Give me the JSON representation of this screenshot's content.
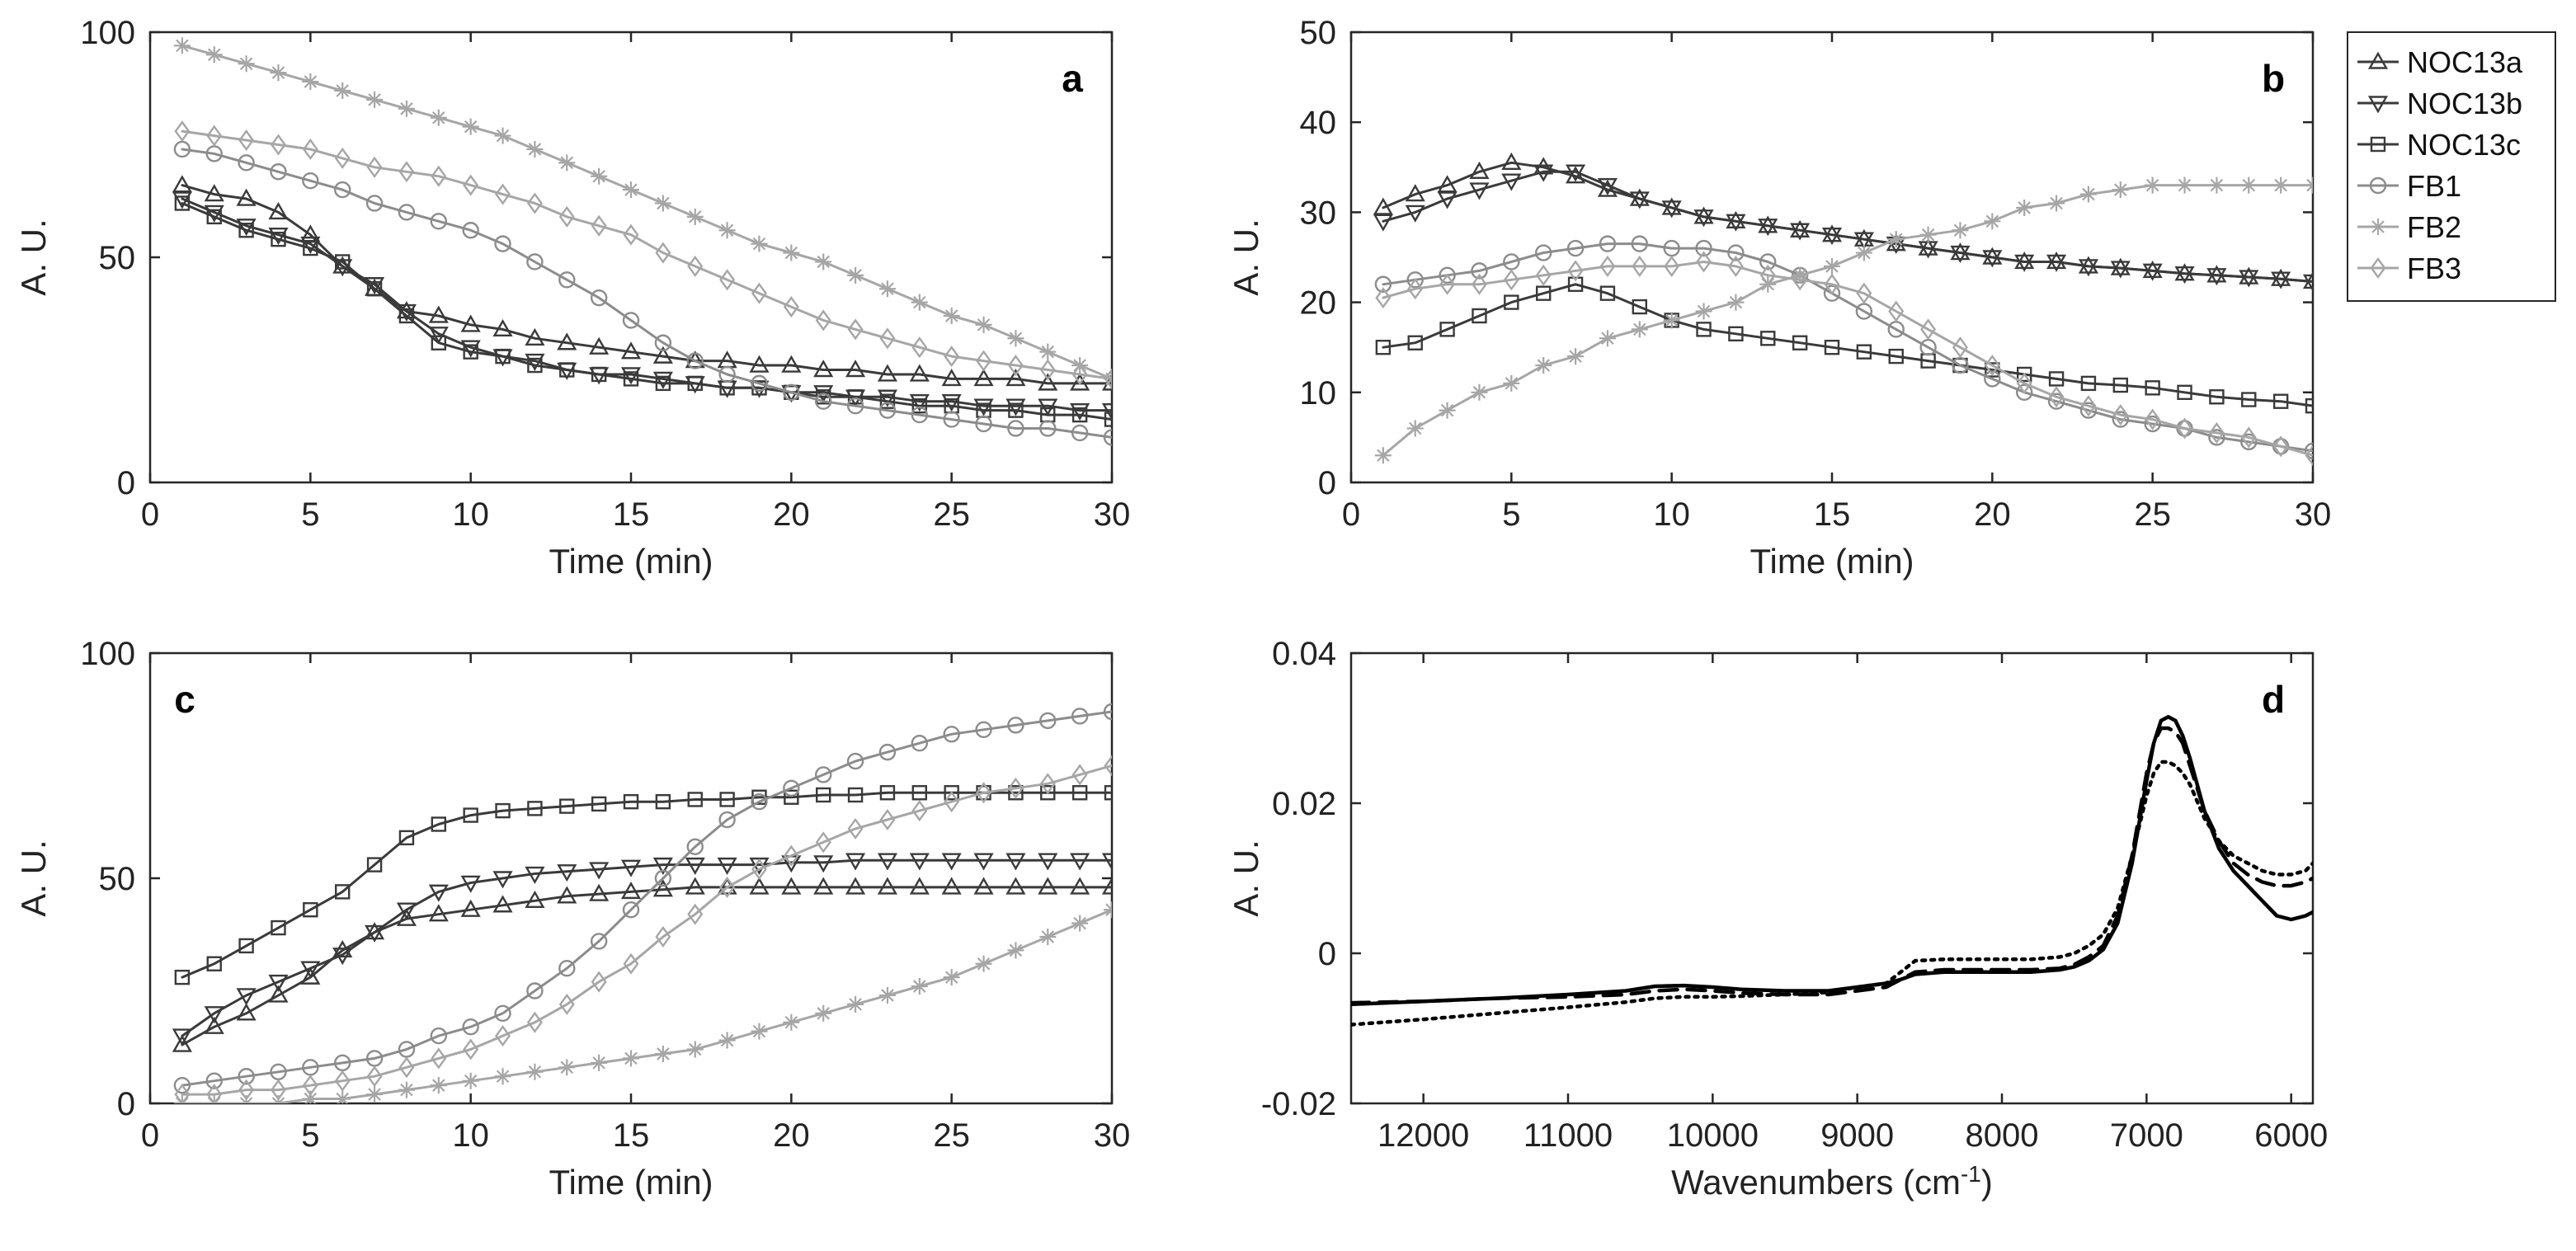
{
  "legend": {
    "entries": [
      {
        "label": "NOC13a",
        "color": "#3a3a3a",
        "marker": "triangle-up-icon"
      },
      {
        "label": "NOC13b",
        "color": "#3a3a3a",
        "marker": "triangle-down-icon"
      },
      {
        "label": "NOC13c",
        "color": "#3a3a3a",
        "marker": "square-icon"
      },
      {
        "label": "FB1",
        "color": "#8c8c8c",
        "marker": "circle-icon"
      },
      {
        "label": "FB2",
        "color": "#a6a6a6",
        "marker": "asterisk-icon"
      },
      {
        "label": "FB3",
        "color": "#a6a6a6",
        "marker": "diamond-icon"
      }
    ]
  },
  "chart_data": [
    {
      "type": "line",
      "panel": "a",
      "xlabel": "Time (min)",
      "ylabel": "A. U.",
      "xlim": [
        0,
        30
      ],
      "ylim": [
        0,
        100
      ],
      "xticks": [
        "0",
        "5",
        "10",
        "15",
        "20",
        "25",
        "30"
      ],
      "yticks": [
        "0",
        "50",
        "100"
      ],
      "x": [
        1,
        2,
        3,
        4,
        5,
        6,
        7,
        8,
        9,
        10,
        11,
        12,
        13,
        14,
        15,
        16,
        17,
        18,
        19,
        20,
        21,
        22,
        23,
        24,
        25,
        26,
        27,
        28,
        29,
        30
      ],
      "series": [
        {
          "name": "NOC13a",
          "values": [
            66,
            64,
            63,
            60,
            55,
            48,
            43,
            38,
            37,
            35,
            34,
            32,
            31,
            30,
            29,
            28,
            27,
            27,
            26,
            26,
            25,
            25,
            24,
            24,
            23,
            23,
            23,
            22,
            22,
            22
          ]
        },
        {
          "name": "NOC13b",
          "values": [
            63,
            60,
            57,
            55,
            53,
            48,
            44,
            38,
            33,
            30,
            28,
            27,
            25,
            24,
            24,
            23,
            22,
            21,
            21,
            20,
            20,
            19,
            19,
            18,
            18,
            17,
            17,
            17,
            16,
            16
          ]
        },
        {
          "name": "NOC13c",
          "values": [
            62,
            59,
            56,
            54,
            52,
            49,
            43,
            37,
            31,
            29,
            28,
            26,
            25,
            24,
            23,
            22,
            22,
            21,
            21,
            20,
            19,
            19,
            18,
            17,
            17,
            16,
            16,
            15,
            15,
            14
          ]
        },
        {
          "name": "FB1",
          "values": [
            74,
            73,
            71,
            69,
            67,
            65,
            62,
            60,
            58,
            56,
            53,
            49,
            45,
            41,
            36,
            31,
            27,
            24,
            22,
            20,
            18,
            17,
            16,
            15,
            14,
            13,
            12,
            12,
            11,
            10
          ]
        },
        {
          "name": "FB2",
          "values": [
            97,
            95,
            93,
            91,
            89,
            87,
            85,
            83,
            81,
            79,
            77,
            74,
            71,
            68,
            65,
            62,
            59,
            56,
            53,
            51,
            49,
            46,
            43,
            40,
            37,
            35,
            32,
            29,
            26,
            23
          ]
        },
        {
          "name": "FB3",
          "values": [
            78,
            77,
            76,
            75,
            74,
            72,
            70,
            69,
            68,
            66,
            64,
            62,
            59,
            57,
            55,
            51,
            48,
            45,
            42,
            39,
            36,
            34,
            32,
            30,
            28,
            27,
            26,
            25,
            24,
            23
          ]
        }
      ]
    },
    {
      "type": "line",
      "panel": "b",
      "xlabel": "Time (min)",
      "ylabel": "A. U.",
      "xlim": [
        0,
        30
      ],
      "ylim": [
        0,
        50
      ],
      "xticks": [
        "0",
        "5",
        "10",
        "15",
        "20",
        "25",
        "30"
      ],
      "yticks": [
        "0",
        "10",
        "20",
        "30",
        "40",
        "50"
      ],
      "x": [
        1,
        2,
        3,
        4,
        5,
        6,
        7,
        8,
        9,
        10,
        11,
        12,
        13,
        14,
        15,
        16,
        17,
        18,
        19,
        20,
        21,
        22,
        23,
        24,
        25,
        26,
        27,
        28,
        29,
        30
      ],
      "series": [
        {
          "name": "NOC13a",
          "values": [
            30.5,
            32,
            33,
            34.5,
            35.5,
            35,
            34,
            32.5,
            31.5,
            30.5,
            29.5,
            29,
            28.5,
            28,
            27.5,
            27,
            26.5,
            26,
            25.5,
            25,
            24.5,
            24.5,
            24,
            23.8,
            23.5,
            23.2,
            23,
            22.8,
            22.6,
            22.3
          ]
        },
        {
          "name": "NOC13b",
          "values": [
            29,
            30,
            31.5,
            32.5,
            33.5,
            34.5,
            34.5,
            33,
            31.5,
            30.5,
            29.5,
            29,
            28.5,
            28,
            27.5,
            27,
            26.5,
            26,
            25.5,
            25,
            24.5,
            24.5,
            24,
            23.8,
            23.5,
            23.2,
            23,
            22.8,
            22.6,
            22.3
          ]
        },
        {
          "name": "NOC13c",
          "values": [
            15,
            15.5,
            17,
            18.5,
            20,
            21,
            22,
            21,
            19.5,
            18,
            17,
            16.5,
            16,
            15.5,
            15,
            14.5,
            14,
            13.5,
            13,
            12.5,
            12,
            11.5,
            11,
            10.8,
            10.5,
            10,
            9.5,
            9.2,
            9,
            8.5
          ]
        },
        {
          "name": "FB1",
          "values": [
            22,
            22.5,
            23,
            23.5,
            24.5,
            25.5,
            26,
            26.5,
            26.5,
            26,
            26,
            25.5,
            24.5,
            23,
            21,
            19,
            17,
            15,
            13,
            11.5,
            10,
            9,
            8,
            7,
            6.5,
            6,
            5,
            4.5,
            4,
            3.5
          ]
        },
        {
          "name": "FB2",
          "values": [
            3,
            6,
            8,
            10,
            11,
            13,
            14,
            16,
            17,
            18,
            19,
            20,
            22,
            23,
            24,
            25.5,
            27,
            27.5,
            28,
            29,
            30.5,
            31,
            32,
            32.5,
            33,
            33,
            33,
            33,
            33,
            33
          ]
        },
        {
          "name": "FB3",
          "values": [
            20.5,
            21.5,
            22,
            22,
            22.5,
            23,
            23.5,
            24,
            24,
            24,
            24.5,
            24,
            23,
            22.5,
            22,
            21,
            19,
            17,
            15,
            13,
            11,
            9.5,
            8.5,
            7.5,
            7,
            6,
            5.5,
            5,
            4,
            3
          ]
        }
      ]
    },
    {
      "type": "line",
      "panel": "c",
      "xlabel": "Time (min)",
      "ylabel": "A. U.",
      "xlim": [
        0,
        30
      ],
      "ylim": [
        0,
        100
      ],
      "xticks": [
        "0",
        "5",
        "10",
        "15",
        "20",
        "25",
        "30"
      ],
      "yticks": [
        "0",
        "50",
        "100"
      ],
      "x": [
        1,
        2,
        3,
        4,
        5,
        6,
        7,
        8,
        9,
        10,
        11,
        12,
        13,
        14,
        15,
        16,
        17,
        18,
        19,
        20,
        21,
        22,
        23,
        24,
        25,
        26,
        27,
        28,
        29,
        30
      ],
      "series": [
        {
          "name": "NOC13a",
          "values": [
            13,
            17,
            20,
            24,
            28,
            34,
            38,
            41,
            42,
            43,
            44,
            45,
            46,
            46.5,
            47,
            47.5,
            48,
            48,
            48,
            48,
            48,
            48,
            48,
            48,
            48,
            48,
            48,
            48,
            48,
            48
          ]
        },
        {
          "name": "NOC13b",
          "values": [
            15,
            20,
            24,
            27,
            30,
            33,
            38,
            43,
            47,
            49,
            50,
            51,
            51.5,
            52,
            52.5,
            53,
            53,
            53,
            53,
            53.5,
            53.5,
            54,
            54,
            54,
            54,
            54,
            54,
            54,
            54,
            54
          ]
        },
        {
          "name": "NOC13c",
          "values": [
            28,
            31,
            35,
            39,
            43,
            47,
            53,
            59,
            62,
            64,
            65,
            65.5,
            66,
            66.5,
            67,
            67,
            67.5,
            67.5,
            68,
            68,
            68.5,
            68.5,
            69,
            69,
            69,
            69,
            69,
            69,
            69,
            69
          ]
        },
        {
          "name": "FB1",
          "values": [
            4,
            5,
            6,
            7,
            8,
            9,
            10,
            12,
            15,
            17,
            20,
            25,
            30,
            36,
            43,
            50,
            57,
            63,
            67,
            70,
            73,
            76,
            78,
            80,
            82,
            83,
            84,
            85,
            86,
            87
          ]
        },
        {
          "name": "FB2",
          "values": [
            0,
            0,
            0,
            0,
            1,
            1,
            2,
            3,
            4,
            5,
            6,
            7,
            8,
            9,
            10,
            11,
            12,
            14,
            16,
            18,
            20,
            22,
            24,
            26,
            28,
            31,
            34,
            37,
            40,
            43
          ]
        },
        {
          "name": "FB3",
          "values": [
            2,
            2,
            3,
            3,
            4,
            5,
            6,
            8,
            10,
            12,
            15,
            18,
            22,
            27,
            31,
            37,
            42,
            48,
            52,
            55,
            58,
            61,
            63,
            65,
            67,
            69,
            70,
            71,
            73,
            75
          ]
        }
      ]
    },
    {
      "type": "line",
      "panel": "d",
      "xlabel": "Wavenumbers (cm",
      "xlabel_superscript": "-1",
      "xlabel_suffix": ")",
      "ylabel": "A. U.",
      "xlim": [
        12500,
        5850
      ],
      "x_reversed": true,
      "ylim": [
        -0.02,
        0.04
      ],
      "xticks": [
        "12000",
        "11000",
        "10000",
        "9000",
        "8000",
        "7000",
        "6000"
      ],
      "yticks": [
        "-0.02",
        "0",
        "0.02",
        "0.04"
      ],
      "x": [
        12500,
        12000,
        11500,
        11000,
        10600,
        10400,
        10200,
        10000,
        9800,
        9500,
        9200,
        9000,
        8800,
        8700,
        8600,
        8400,
        8200,
        8000,
        7800,
        7600,
        7500,
        7400,
        7300,
        7200,
        7100,
        7000,
        6950,
        6900,
        6850,
        6800,
        6750,
        6700,
        6600,
        6500,
        6400,
        6300,
        6200,
        6100,
        6000,
        5900,
        5850
      ],
      "series": [
        {
          "style": "solid",
          "values": [
            -0.0068,
            -0.0064,
            -0.006,
            -0.0055,
            -0.005,
            -0.0044,
            -0.0043,
            -0.0045,
            -0.0048,
            -0.005,
            -0.005,
            -0.0045,
            -0.004,
            -0.0035,
            -0.0028,
            -0.0025,
            -0.0025,
            -0.0025,
            -0.0025,
            -0.0022,
            -0.0018,
            -0.001,
            0.0005,
            0.004,
            0.012,
            0.023,
            0.028,
            0.031,
            0.0315,
            0.031,
            0.029,
            0.026,
            0.019,
            0.014,
            0.011,
            0.009,
            0.007,
            0.005,
            0.0045,
            0.005,
            0.0055
          ]
        },
        {
          "style": "dashed",
          "values": [
            -0.0066,
            -0.0064,
            -0.006,
            -0.0058,
            -0.0055,
            -0.005,
            -0.0048,
            -0.005,
            -0.0053,
            -0.0055,
            -0.0055,
            -0.005,
            -0.0045,
            -0.0035,
            -0.0025,
            -0.0022,
            -0.0022,
            -0.0022,
            -0.0022,
            -0.002,
            -0.0015,
            -0.0005,
            0.001,
            0.005,
            0.013,
            0.024,
            0.028,
            0.03,
            0.03,
            0.0295,
            0.028,
            0.025,
            0.019,
            0.015,
            0.012,
            0.0105,
            0.0095,
            0.009,
            0.009,
            0.0095,
            0.01
          ]
        },
        {
          "style": "dotted",
          "values": [
            -0.0095,
            -0.0088,
            -0.008,
            -0.0072,
            -0.0065,
            -0.006,
            -0.0058,
            -0.0058,
            -0.0057,
            -0.0055,
            -0.0052,
            -0.0045,
            -0.004,
            -0.0025,
            -0.001,
            -0.0008,
            -0.0008,
            -0.0008,
            -0.0008,
            -0.0005,
            0.0,
            0.001,
            0.0025,
            0.006,
            0.013,
            0.021,
            0.024,
            0.0255,
            0.0255,
            0.025,
            0.024,
            0.0225,
            0.018,
            0.015,
            0.013,
            0.012,
            0.011,
            0.0105,
            0.0105,
            0.011,
            0.012
          ]
        }
      ]
    }
  ]
}
